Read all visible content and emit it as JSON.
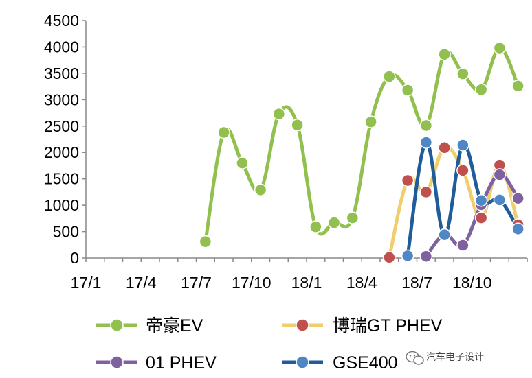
{
  "chart_data": {
    "type": "line",
    "title": "",
    "xlabel": "",
    "ylabel": "",
    "ylim": [
      0,
      4500
    ],
    "y_ticks": [
      0,
      500,
      1000,
      1500,
      2000,
      2500,
      3000,
      3500,
      4000,
      4500
    ],
    "x_tick_labels": [
      "17/1",
      "17/4",
      "17/7",
      "17/10",
      "18/1",
      "18/4",
      "18/7",
      "18/10"
    ],
    "x_tick_index": [
      0,
      3,
      6,
      9,
      12,
      15,
      18,
      21
    ],
    "num_months": 24,
    "legend_position": "bottom",
    "series": [
      {
        "name": "帝豪EV",
        "color": "#92C04E",
        "points": [
          [
            6,
            310
          ],
          [
            7,
            2380
          ],
          [
            8,
            1800
          ],
          [
            9,
            1290
          ],
          [
            10,
            2730
          ],
          [
            11,
            2520
          ],
          [
            12,
            590
          ],
          [
            13,
            670
          ],
          [
            14,
            760
          ],
          [
            15,
            2580
          ],
          [
            16,
            3440
          ],
          [
            17,
            3180
          ],
          [
            18,
            2510
          ],
          [
            19,
            3860
          ],
          [
            20,
            3490
          ],
          [
            21,
            3190
          ],
          [
            22,
            3980
          ],
          [
            23,
            3260
          ]
        ]
      },
      {
        "name": "博瑞GT PHEV",
        "color": "#F0CE6E",
        "marker_color": "#C0504D",
        "points": [
          [
            16,
            10
          ],
          [
            17,
            1470
          ],
          [
            18,
            1250
          ],
          [
            19,
            2090
          ],
          [
            20,
            1660
          ],
          [
            21,
            760
          ],
          [
            22,
            1760
          ],
          [
            23,
            630
          ]
        ]
      },
      {
        "name": "01 PHEV",
        "color": "#7F61A0",
        "points": [
          [
            18,
            30
          ],
          [
            19,
            440
          ],
          [
            20,
            240
          ],
          [
            21,
            1010
          ],
          [
            22,
            1580
          ],
          [
            23,
            1130
          ]
        ]
      },
      {
        "name": "GSE400",
        "color": "#1F5C99",
        "marker_color": "#4F86C6",
        "points": [
          [
            17,
            40
          ],
          [
            18,
            2190
          ],
          [
            19,
            440
          ],
          [
            20,
            2140
          ],
          [
            21,
            1090
          ],
          [
            22,
            1100
          ],
          [
            23,
            550
          ]
        ]
      }
    ]
  },
  "watermark": {
    "text": "汽车电子设计"
  }
}
